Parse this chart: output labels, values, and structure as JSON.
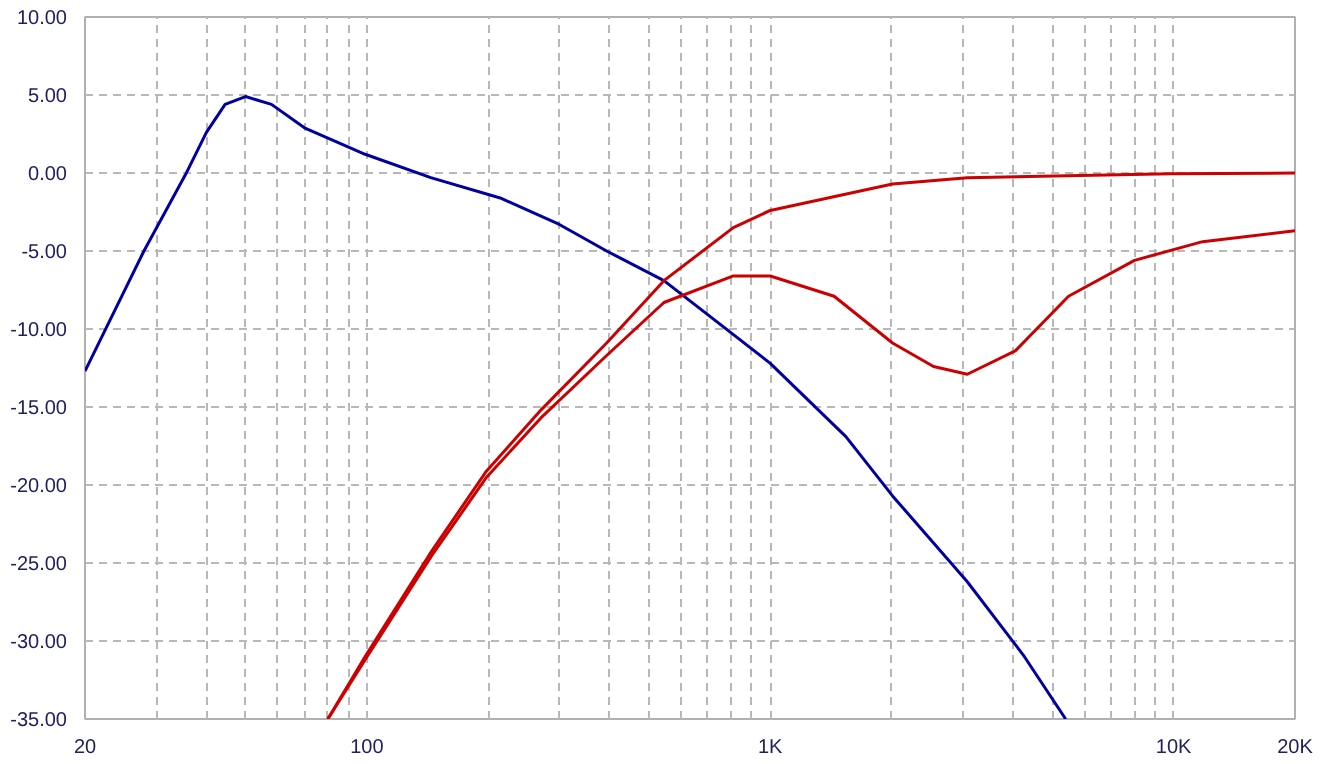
{
  "chart_data": {
    "type": "line",
    "log": "x",
    "grid": true,
    "line_style": "solid",
    "xlim": [
      20,
      20000
    ],
    "ylim": [
      -35,
      10
    ],
    "xticks": [
      20,
      {
        "value": 30,
        "label": null
      },
      {
        "value": 40,
        "label": null
      },
      {
        "value": 50,
        "label": null
      },
      {
        "value": 60,
        "label": null
      },
      {
        "value": 70,
        "label": null
      },
      {
        "value": 80,
        "label": null
      },
      {
        "value": 90,
        "label": null
      },
      100,
      {
        "value": 200,
        "label": null
      },
      {
        "value": 300,
        "label": null
      },
      {
        "value": 400,
        "label": null
      },
      {
        "value": 500,
        "label": null
      },
      {
        "value": 600,
        "label": null
      },
      {
        "value": 700,
        "label": null
      },
      {
        "value": 800,
        "label": null
      },
      {
        "value": 900,
        "label": null
      },
      {
        "value": 1000,
        "label": "1K"
      },
      {
        "value": 2000,
        "label": null
      },
      {
        "value": 3000,
        "label": null
      },
      {
        "value": 4000,
        "label": null
      },
      {
        "value": 5000,
        "label": null
      },
      {
        "value": 6000,
        "label": null
      },
      {
        "value": 7000,
        "label": null
      },
      {
        "value": 8000,
        "label": null
      },
      {
        "value": 9000,
        "label": null
      },
      {
        "value": 10000,
        "label": "10K"
      },
      {
        "value": 20000,
        "label": "20K"
      }
    ],
    "yticks": [
      {
        "value": -35,
        "label": "-35.00"
      },
      {
        "value": -30,
        "label": "-30.00"
      },
      {
        "value": -25,
        "label": "-25.00"
      },
      {
        "value": -20,
        "label": "-20.00"
      },
      {
        "value": -15,
        "label": "-15.00"
      },
      {
        "value": -10,
        "label": "-10.00"
      },
      {
        "value": -5,
        "label": "-5.00"
      },
      {
        "value": 0,
        "label": "0.00"
      },
      {
        "value": 5,
        "label": "5.00"
      },
      {
        "value": 10,
        "label": "10.00"
      }
    ],
    "series": [
      {
        "color": "#0000a0",
        "x": [
          20,
          28,
          35.5,
          40,
          44.5,
          50,
          58,
          70,
          99,
          144,
          214,
          300,
          393,
          545,
          1000,
          1540,
          2010,
          3080,
          4240,
          5400
        ],
        "values": [
          -12.7,
          -5.0,
          -0.1,
          2.6,
          4.4,
          4.9,
          4.4,
          2.9,
          1.2,
          -0.3,
          -1.6,
          -3.3,
          -5.0,
          -6.9,
          -12.2,
          -16.9,
          -20.7,
          -26.2,
          -30.9,
          -35
        ]
      },
      {
        "color": "#cc0000",
        "x": [
          80,
          99,
          145,
          198,
          270,
          393,
          545,
          810,
          1000,
          2010,
          3080,
          9800,
          20000
        ],
        "values": [
          -35,
          -31.0,
          -24.2,
          -19.1,
          -15.2,
          -10.9,
          -6.9,
          -3.5,
          -2.4,
          -0.7,
          -0.3,
          -0.05,
          0
        ]
      },
      {
        "color": "#cc0000",
        "x": [
          80,
          99,
          145,
          198,
          270,
          393,
          545,
          810,
          1000,
          1440,
          2010,
          2540,
          3080,
          4050,
          5490,
          8000,
          11800,
          20000
        ],
        "values": [
          -35,
          -31.2,
          -24.5,
          -19.5,
          -15.7,
          -11.7,
          -8.3,
          -6.6,
          -6.6,
          -7.9,
          -10.9,
          -12.4,
          -12.9,
          -11.4,
          -7.9,
          -5.6,
          -4.4,
          -3.7
        ]
      }
    ]
  }
}
